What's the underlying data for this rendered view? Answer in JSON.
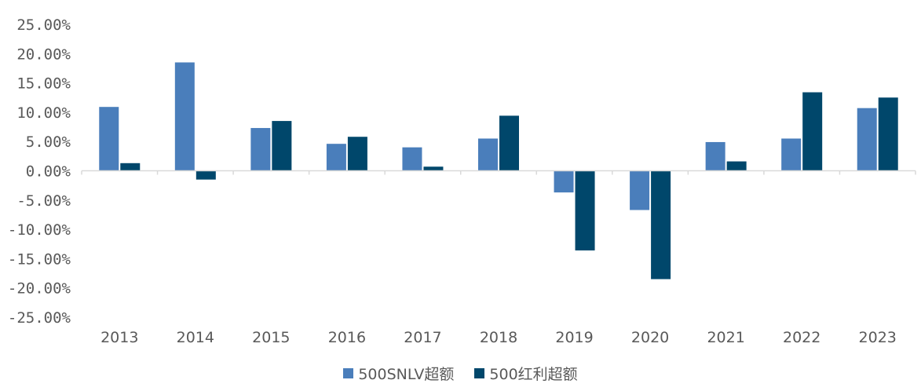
{
  "colors": {
    "series1": "#4a7ebb",
    "series2": "#00476b",
    "axis": "#d9d9d9",
    "text": "#595959"
  },
  "chart_data": {
    "type": "bar",
    "categories": [
      "2013",
      "2014",
      "2015",
      "2016",
      "2017",
      "2018",
      "2019",
      "2020",
      "2021",
      "2022",
      "2023"
    ],
    "series": [
      {
        "name": "500SNLV超额",
        "values": [
          10.9,
          18.5,
          7.3,
          4.6,
          4.0,
          5.5,
          -3.7,
          -6.7,
          4.9,
          5.5,
          10.7
        ]
      },
      {
        "name": "500红利超额",
        "values": [
          1.3,
          -1.5,
          8.5,
          5.8,
          0.7,
          9.4,
          -13.6,
          -18.5,
          1.6,
          13.4,
          12.5
        ]
      }
    ],
    "ylim": [
      -25,
      25
    ],
    "yticks": [
      25,
      20,
      15,
      10,
      5,
      0,
      -5,
      -10,
      -15,
      -20,
      -25
    ],
    "ytick_labels": [
      "25.00%",
      "20.00%",
      "15.00%",
      "10.00%",
      "5.00%",
      "0.00%",
      "-5.00%",
      "-10.00%",
      "-15.00%",
      "-20.00%",
      "-25.00%"
    ],
    "title": "",
    "xlabel": "",
    "ylabel": "",
    "grid": false,
    "legend_position": "bottom"
  }
}
